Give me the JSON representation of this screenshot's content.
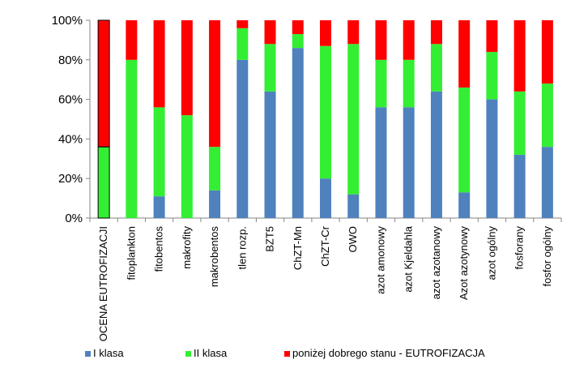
{
  "chart_data": {
    "type": "bar",
    "stacked": true,
    "percent": true,
    "title": "",
    "xlabel": "",
    "ylabel": "",
    "ylim": [
      0,
      100
    ],
    "yticks": [
      "0%",
      "20%",
      "40%",
      "60%",
      "80%",
      "100%"
    ],
    "grid": false,
    "legend_position": "bottom",
    "categories": [
      "OCENA EUTROFIZACJI",
      "fitoplankton",
      "fitobentos",
      "makrofity",
      "makrobentos",
      "tlen rozp.",
      "BZT5",
      "ChZT-Mn",
      "ChZT-Cr",
      "OWO",
      "azot amonowy",
      "azot Kjeldahla",
      "azot azotanowy",
      "Azot azotynowy",
      "azot ogólny",
      "fosforany",
      "fosfor ogólny"
    ],
    "series": [
      {
        "name": "I klasa",
        "color": "#4f81bd",
        "values": [
          0,
          0,
          11,
          0,
          14,
          80,
          64,
          86,
          20,
          12,
          56,
          56,
          64,
          13,
          60,
          32,
          36
        ]
      },
      {
        "name": "II klasa",
        "color": "#33ee33",
        "values": [
          36,
          80,
          45,
          52,
          22,
          16,
          24,
          7,
          67,
          76,
          24,
          24,
          24,
          53,
          24,
          32,
          32
        ]
      },
      {
        "name": "poniżej dobrego stanu - EUTROFIZACJA",
        "color": "#ff0000",
        "values": [
          64,
          20,
          44,
          48,
          64,
          4,
          12,
          7,
          13,
          12,
          20,
          20,
          12,
          34,
          16,
          36,
          32
        ]
      }
    ]
  }
}
